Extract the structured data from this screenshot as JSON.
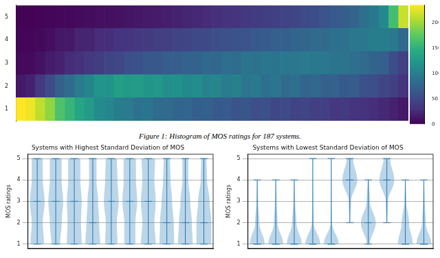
{
  "caption": "Figure 1: Histogram of MOS ratings for 187 systems.",
  "chart_data": [
    {
      "type": "heatmap",
      "categories": [
        null,
        null,
        null,
        null,
        null,
        null,
        null,
        null,
        null,
        null,
        null,
        null,
        null,
        null,
        null,
        null,
        null,
        null,
        null,
        null,
        null,
        null,
        null,
        null,
        null,
        null,
        null,
        null,
        null,
        null,
        null,
        null,
        null,
        null,
        null,
        null,
        null,
        null,
        null,
        null
      ],
      "rows": [
        1,
        2,
        3,
        4,
        5
      ],
      "ylim": [
        0.5,
        5.5
      ],
      "yticks": [
        1,
        2,
        3,
        4,
        5
      ],
      "cells": [
        [
          235,
          230,
          212,
          195,
          168,
          155,
          138,
          128,
          112,
          108,
          98,
          97,
          88,
          90,
          82,
          81,
          76,
          77,
          70,
          72,
          66,
          67,
          60,
          62,
          56,
          57,
          50,
          52,
          46,
          47,
          41,
          42,
          36,
          37,
          31,
          30,
          27,
          24,
          19,
          14
        ],
        [
          14,
          20,
          36,
          52,
          72,
          82,
          97,
          106,
          122,
          120,
          132,
          126,
          128,
          122,
          124,
          116,
          118,
          110,
          114,
          104,
          108,
          98,
          102,
          92,
          96,
          86,
          92,
          82,
          86,
          76,
          80,
          72,
          74,
          66,
          68,
          58,
          56,
          48,
          42,
          30
        ],
        [
          5,
          6,
          10,
          16,
          19,
          26,
          29,
          36,
          39,
          46,
          49,
          56,
          58,
          64,
          64,
          70,
          69,
          74,
          74,
          80,
          78,
          84,
          83,
          90,
          88,
          92,
          90,
          94,
          93,
          97,
          94,
          93,
          89,
          89,
          84,
          81,
          74,
          71,
          55,
          41
        ],
        [
          2,
          3,
          5,
          8,
          13,
          14,
          21,
          21,
          26,
          27,
          31,
          31,
          36,
          37,
          41,
          41,
          46,
          47,
          51,
          51,
          56,
          57,
          61,
          61,
          66,
          67,
          71,
          71,
          76,
          77,
          81,
          81,
          86,
          87,
          93,
          94,
          99,
          99,
          94,
          80
        ],
        [
          1,
          1,
          2,
          3,
          4,
          5,
          6,
          7,
          8,
          9,
          10,
          12,
          13,
          15,
          16,
          18,
          20,
          22,
          24,
          26,
          28,
          30,
          32,
          35,
          38,
          40,
          42,
          45,
          48,
          52,
          55,
          60,
          65,
          70,
          75,
          86,
          95,
          110,
          162,
          216
        ]
      ],
      "color": "viridis",
      "colorbar_range": [
        0,
        235
      ],
      "colorbar_ticks": [
        0,
        50,
        100,
        150,
        200
      ],
      "tick_labels": "y",
      "grid": false
    },
    {
      "type": "violin",
      "title": "Systems with Highest Standard Deviation of MOS",
      "y_label": "MOS ratings",
      "categories": [
        null,
        null,
        null,
        null,
        null,
        null,
        null,
        null,
        null,
        null
      ],
      "ratings": [
        1,
        2,
        3,
        4,
        5
      ],
      "violins": [
        {
          "min": 1,
          "max": 5,
          "median": 3,
          "density": [
            22,
            18,
            24,
            18,
            18
          ]
        },
        {
          "min": 1,
          "max": 5,
          "median": 3,
          "density": [
            15,
            20,
            25,
            20,
            20
          ]
        },
        {
          "min": 1,
          "max": 5,
          "median": 3,
          "density": [
            22,
            20,
            22,
            18,
            18
          ]
        },
        {
          "min": 1,
          "max": 5,
          "median": 2,
          "density": [
            28,
            24,
            20,
            14,
            14
          ]
        },
        {
          "min": 1,
          "max": 5,
          "median": 3,
          "density": [
            20,
            18,
            24,
            20,
            18
          ]
        },
        {
          "min": 1,
          "max": 5,
          "median": 3,
          "density": [
            18,
            18,
            24,
            20,
            20
          ]
        },
        {
          "min": 1,
          "max": 5,
          "median": 3,
          "density": [
            22,
            18,
            22,
            18,
            20
          ]
        },
        {
          "min": 1,
          "max": 5,
          "median": 2,
          "density": [
            28,
            26,
            20,
            14,
            12
          ]
        },
        {
          "min": 1,
          "max": 5,
          "median": 2,
          "density": [
            30,
            26,
            20,
            12,
            12
          ]
        },
        {
          "min": 1,
          "max": 5,
          "median": 2,
          "density": [
            28,
            28,
            22,
            12,
            10
          ]
        }
      ],
      "ylim": [
        0.8,
        5.2
      ],
      "yticks": [
        1,
        2,
        3,
        4,
        5
      ],
      "color": "#1f77b4",
      "tick_labels": "y",
      "grid": true
    },
    {
      "type": "violin",
      "title": "Systems with Lowest Standard Deviation of MOS",
      "y_label": "MOS ratings",
      "categories": [
        null,
        null,
        null,
        null,
        null,
        null,
        null,
        null,
        null,
        null
      ],
      "ratings": [
        1,
        2,
        3,
        4,
        5
      ],
      "violins": [
        {
          "min": 1,
          "max": 4,
          "median": 1,
          "density": [
            70,
            20,
            8,
            2,
            0
          ]
        },
        {
          "min": 1,
          "max": 4,
          "median": 1,
          "density": [
            72,
            18,
            8,
            2,
            0
          ]
        },
        {
          "min": 1,
          "max": 4,
          "median": 1,
          "density": [
            70,
            20,
            8,
            2,
            0
          ]
        },
        {
          "min": 1,
          "max": 5,
          "median": 1,
          "density": [
            80,
            10,
            5,
            3,
            2
          ]
        },
        {
          "min": 1,
          "max": 5,
          "median": 1,
          "density": [
            82,
            8,
            5,
            3,
            2
          ]
        },
        {
          "min": 2,
          "max": 5,
          "median": 4,
          "density": [
            0,
            3,
            10,
            60,
            27
          ]
        },
        {
          "min": 1,
          "max": 4,
          "median": 2,
          "density": [
            15,
            65,
            15,
            5,
            0
          ]
        },
        {
          "min": 2,
          "max": 5,
          "median": 4,
          "density": [
            0,
            3,
            10,
            60,
            27
          ]
        },
        {
          "min": 1,
          "max": 4,
          "median": 1,
          "density": [
            60,
            30,
            8,
            2,
            0
          ]
        },
        {
          "min": 1,
          "max": 4,
          "median": 1,
          "density": [
            72,
            18,
            8,
            2,
            0
          ]
        }
      ],
      "ylim": [
        0.8,
        5.2
      ],
      "yticks": [
        1,
        2,
        3,
        4,
        5
      ],
      "color": "#1f77b4",
      "tick_labels": "y",
      "grid": true
    }
  ]
}
